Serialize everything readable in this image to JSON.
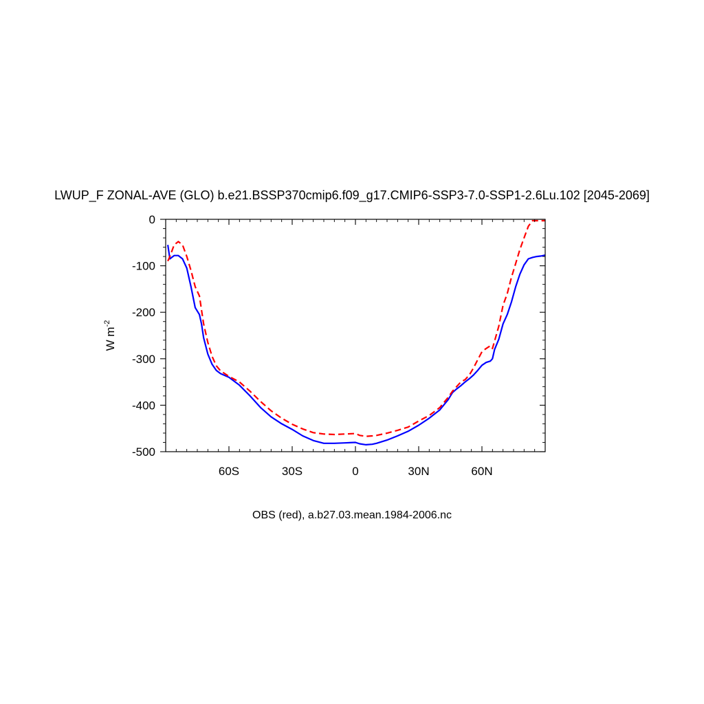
{
  "chart_data": {
    "type": "line",
    "title": "LWUP_F ZONAL-AVE (GLO) b.e21.BSSP370cmip6.f09_g17.CMIP6-SSP3-7.0-SSP1-2.6Lu.102 [2045-2069]",
    "xlabel": "",
    "ylabel": "W m",
    "ylabel_superscript": "-2",
    "caption": "OBS (red), a.b27.03.mean.1984-2006.nc",
    "xlim": [
      -90,
      90
    ],
    "ylim": [
      -500,
      0
    ],
    "x_ticks": [
      {
        "value": -60,
        "label": "60S"
      },
      {
        "value": -30,
        "label": "30S"
      },
      {
        "value": 0,
        "label": "0"
      },
      {
        "value": 30,
        "label": "30N"
      },
      {
        "value": 60,
        "label": "60N"
      }
    ],
    "y_ticks": [
      {
        "value": 0,
        "label": "0"
      },
      {
        "value": -100,
        "label": "-100"
      },
      {
        "value": -200,
        "label": "-200"
      },
      {
        "value": -300,
        "label": "-300"
      },
      {
        "value": -400,
        "label": "-400"
      },
      {
        "value": -500,
        "label": "-500"
      }
    ],
    "grid": false,
    "series": [
      {
        "color": "#0000ff",
        "style": "solid",
        "x": [
          -89,
          -88,
          -86,
          -84,
          -82,
          -80,
          -78,
          -76,
          -74,
          -73,
          -72,
          -70,
          -68,
          -66,
          -64,
          -62,
          -60,
          -55,
          -50,
          -45,
          -40,
          -35,
          -30,
          -25,
          -20,
          -15,
          -10,
          -5,
          0,
          2,
          5,
          8,
          10,
          15,
          20,
          25,
          30,
          35,
          40,
          44,
          46,
          48,
          50,
          52,
          54,
          56,
          58,
          60,
          62,
          64,
          65,
          66,
          68,
          70,
          72,
          74,
          76,
          78,
          80,
          82,
          84,
          86,
          88,
          90
        ],
        "y": [
          -55,
          -85,
          -78,
          -78,
          -85,
          -105,
          -145,
          -190,
          -205,
          -225,
          -255,
          -290,
          -312,
          -325,
          -332,
          -336,
          -340,
          -357,
          -380,
          -405,
          -425,
          -440,
          -452,
          -466,
          -476,
          -482,
          -482,
          -481,
          -480,
          -483,
          -485,
          -484,
          -482,
          -475,
          -466,
          -456,
          -443,
          -428,
          -410,
          -388,
          -373,
          -365,
          -358,
          -350,
          -343,
          -335,
          -325,
          -314,
          -308,
          -305,
          -300,
          -280,
          -258,
          -225,
          -205,
          -178,
          -145,
          -118,
          -98,
          -85,
          -82,
          -80,
          -79,
          -77
        ]
      },
      {
        "color": "#ff0000",
        "style": "dashed",
        "x": [
          -89,
          -88,
          -86,
          -84,
          -82,
          -80,
          -78,
          -76,
          -74,
          -73,
          -72,
          -70,
          -68,
          -66,
          -64,
          -62,
          -60,
          -55,
          -50,
          -45,
          -40,
          -35,
          -30,
          -25,
          -20,
          -15,
          -10,
          -5,
          0,
          2,
          5,
          8,
          10,
          15,
          20,
          25,
          30,
          35,
          40,
          44,
          46,
          48,
          50,
          52,
          54,
          56,
          58,
          60,
          62,
          64,
          65,
          66,
          68,
          70,
          72,
          74,
          76,
          78,
          80,
          82,
          84,
          86,
          88,
          90
        ],
        "y": [
          -90,
          -80,
          -55,
          -48,
          -55,
          -80,
          -110,
          -145,
          -165,
          -195,
          -225,
          -265,
          -295,
          -315,
          -326,
          -332,
          -338,
          -350,
          -370,
          -392,
          -412,
          -428,
          -441,
          -451,
          -459,
          -462,
          -463,
          -462,
          -461,
          -465,
          -467,
          -466,
          -465,
          -460,
          -454,
          -447,
          -434,
          -422,
          -405,
          -383,
          -370,
          -360,
          -350,
          -345,
          -335,
          -320,
          -302,
          -285,
          -278,
          -272,
          -278,
          -262,
          -230,
          -185,
          -160,
          -125,
          -95,
          -65,
          -40,
          -15,
          -3,
          -3,
          -3,
          -3
        ]
      }
    ]
  }
}
